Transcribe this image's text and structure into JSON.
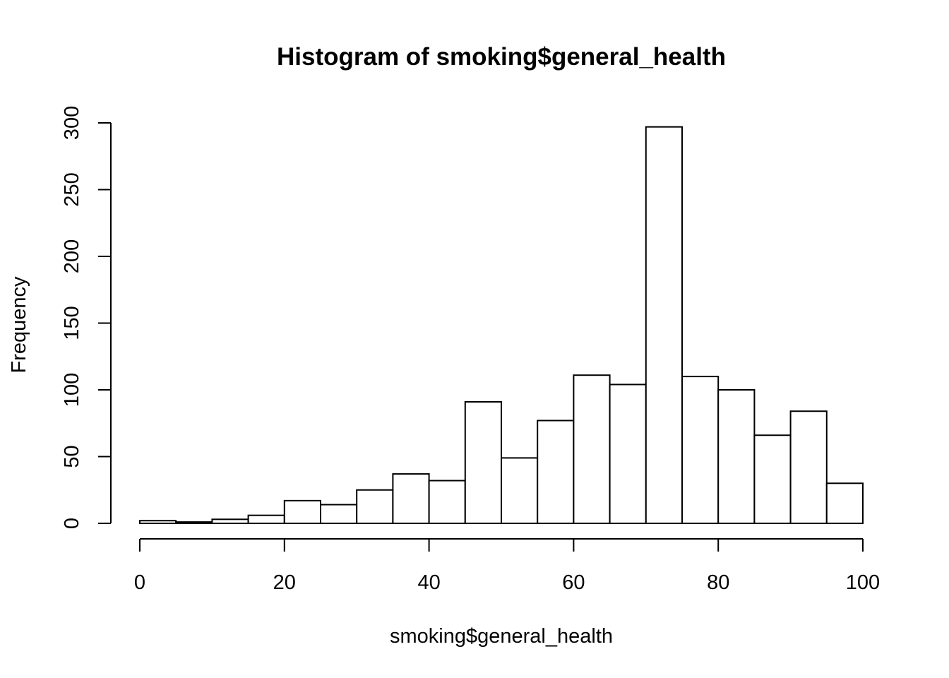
{
  "chart_data": {
    "type": "bar",
    "title": "Histogram of smoking$general_health",
    "xlabel": "smoking$general_health",
    "ylabel": "Frequency",
    "bin_edges": [
      0,
      5,
      10,
      15,
      20,
      25,
      30,
      35,
      40,
      45,
      50,
      55,
      60,
      65,
      70,
      75,
      80,
      85,
      90,
      95,
      100
    ],
    "values": [
      2,
      1,
      3,
      6,
      17,
      14,
      25,
      37,
      32,
      91,
      49,
      77,
      111,
      104,
      297,
      110,
      100,
      66,
      84,
      30
    ],
    "xlim": [
      0,
      100
    ],
    "ylim": [
      0,
      300
    ],
    "x_ticks": [
      "0",
      "20",
      "40",
      "60",
      "80",
      "100"
    ],
    "y_ticks": [
      "0",
      "50",
      "100",
      "150",
      "200",
      "250",
      "300"
    ],
    "grid": false,
    "legend": "none",
    "colors": {
      "bar_fill": "#ffffff",
      "bar_stroke": "#000000"
    }
  }
}
